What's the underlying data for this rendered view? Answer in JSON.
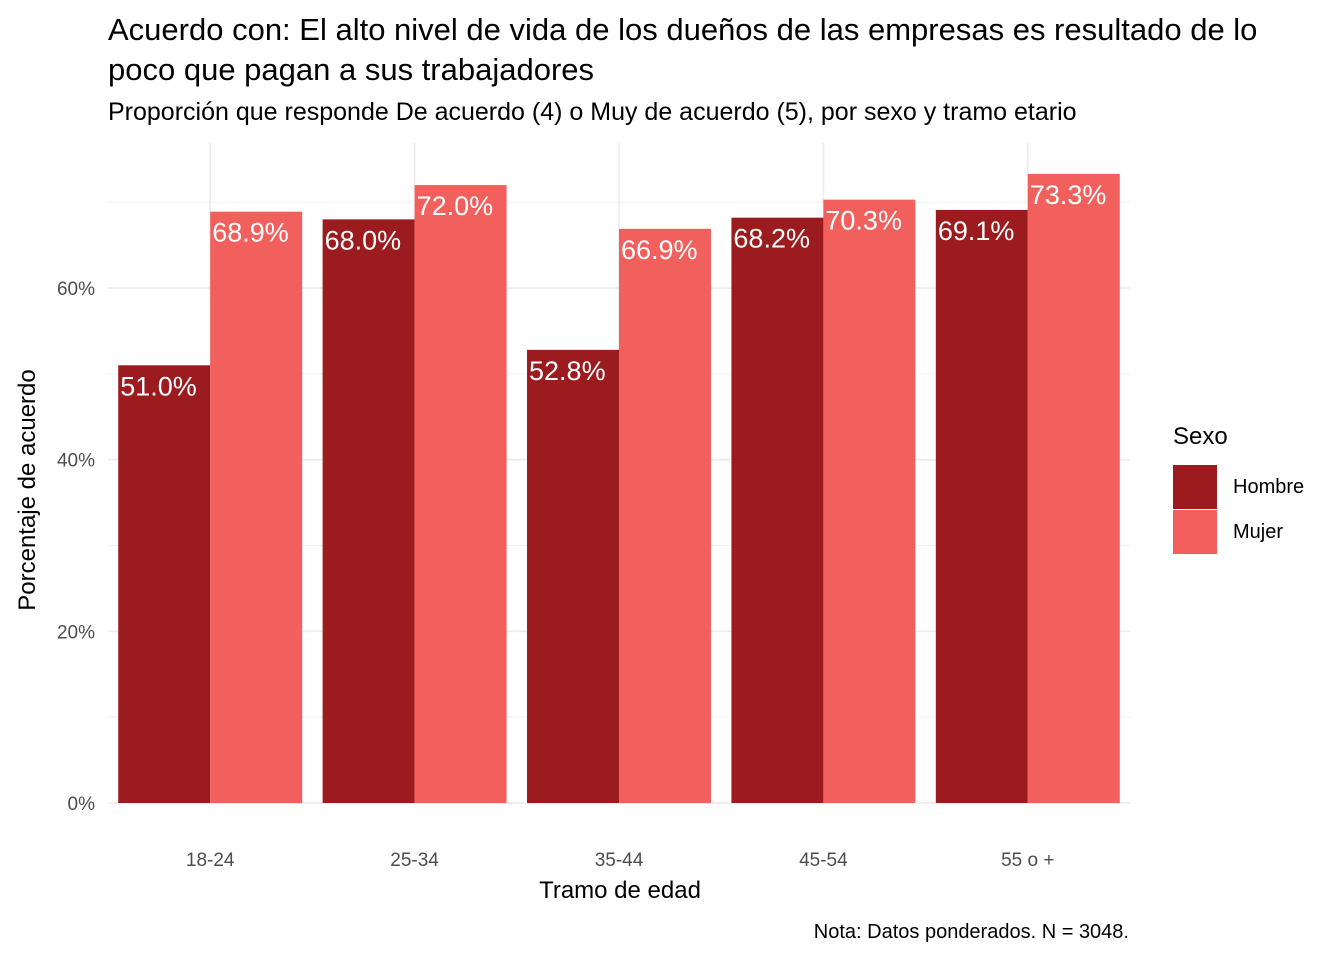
{
  "chart_data": {
    "type": "bar",
    "title": "Acuerdo con: El alto nivel de vida de los dueños de las empresas es resultado de lo poco que pagan a sus trabajadores",
    "subtitle": "Proporción que responde De acuerdo (4) o Muy de acuerdo (5), por sexo y tramo etario",
    "xlabel": "Tramo de edad",
    "ylabel": "Porcentaje de acuerdo",
    "caption": "Nota: Datos ponderados. N = 3048.",
    "categories": [
      "18-24",
      "25-34",
      "35-44",
      "45-54",
      "55 o +"
    ],
    "series": [
      {
        "name": "Hombre",
        "color": "#9B1B1F",
        "values": [
          51.0,
          68.0,
          52.8,
          68.2,
          69.1
        ],
        "labels": [
          "51.0%",
          "68.0%",
          "52.8%",
          "68.2%",
          "69.1%"
        ]
      },
      {
        "name": "Mujer",
        "color": "#F2605D",
        "values": [
          68.9,
          72.0,
          66.9,
          70.3,
          73.3
        ],
        "labels": [
          "68.9%",
          "72.0%",
          "66.9%",
          "70.3%",
          "73.3%"
        ]
      }
    ],
    "yticks": [
      "0%",
      "20%",
      "40%",
      "60%"
    ],
    "ytick_values": [
      0,
      20,
      40,
      60
    ],
    "ylim": [
      0,
      76.9
    ],
    "grid": true,
    "legend_title": "Sexo",
    "legend_position": "right"
  }
}
